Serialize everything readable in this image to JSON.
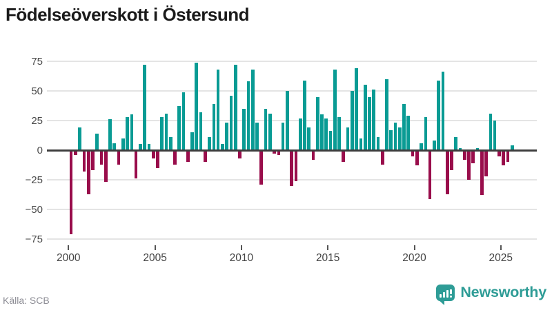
{
  "header": {
    "title": "Födelseöverskott i Östersund"
  },
  "footer": {
    "source": "Källa: SCB",
    "brand_name": "Newsworthy",
    "brand_icon": "newsworthy-bar-chart-bubble-icon"
  },
  "colors": {
    "positive": "#099b94",
    "negative": "#990d4b",
    "brand": "#2e9c96",
    "zero_axis": "#3d3d3d",
    "grid": "#e4e4e4"
  },
  "chart_data": {
    "type": "bar",
    "title": "Födelseöverskott i Östersund",
    "xlabel": "",
    "ylabel": "",
    "frequency": "quarterly",
    "start_year": 2000,
    "start_quarter": 1,
    "end_label": "2025 Q3",
    "x_tick_labels": [
      "2000",
      "2005",
      "2010",
      "2015",
      "2020",
      "2025"
    ],
    "y_tick_labels": [
      "75",
      "50",
      "25",
      "0",
      "−25",
      "−50",
      "−75"
    ],
    "y_ticks": [
      75,
      50,
      25,
      0,
      -25,
      -50,
      -75
    ],
    "ylim": [
      -80,
      80
    ],
    "grid": true,
    "legend": "none",
    "values": [
      -71,
      -4,
      19,
      -18,
      -37,
      -17,
      14,
      -12,
      -27,
      26,
      6,
      -12,
      10,
      28,
      30,
      -24,
      5,
      72,
      5,
      -7,
      -15,
      28,
      31,
      11,
      -12,
      37,
      49,
      -10,
      15,
      74,
      32,
      -10,
      11,
      39,
      68,
      5,
      23,
      46,
      72,
      -7,
      35,
      58,
      68,
      23,
      -29,
      35,
      31,
      -3,
      -4,
      23,
      50,
      -30,
      -26,
      27,
      59,
      19,
      -8,
      45,
      30,
      27,
      16,
      68,
      28,
      -10,
      19,
      50,
      69,
      10,
      55,
      45,
      51,
      11,
      -12,
      60,
      17,
      23,
      19,
      39,
      29,
      -5,
      -13,
      6,
      28,
      -41,
      8,
      59,
      66,
      -37,
      -17,
      11,
      2,
      -8,
      -25,
      -11,
      2,
      -38,
      -22,
      31,
      25,
      -5,
      -13,
      -10,
      4
    ]
  }
}
